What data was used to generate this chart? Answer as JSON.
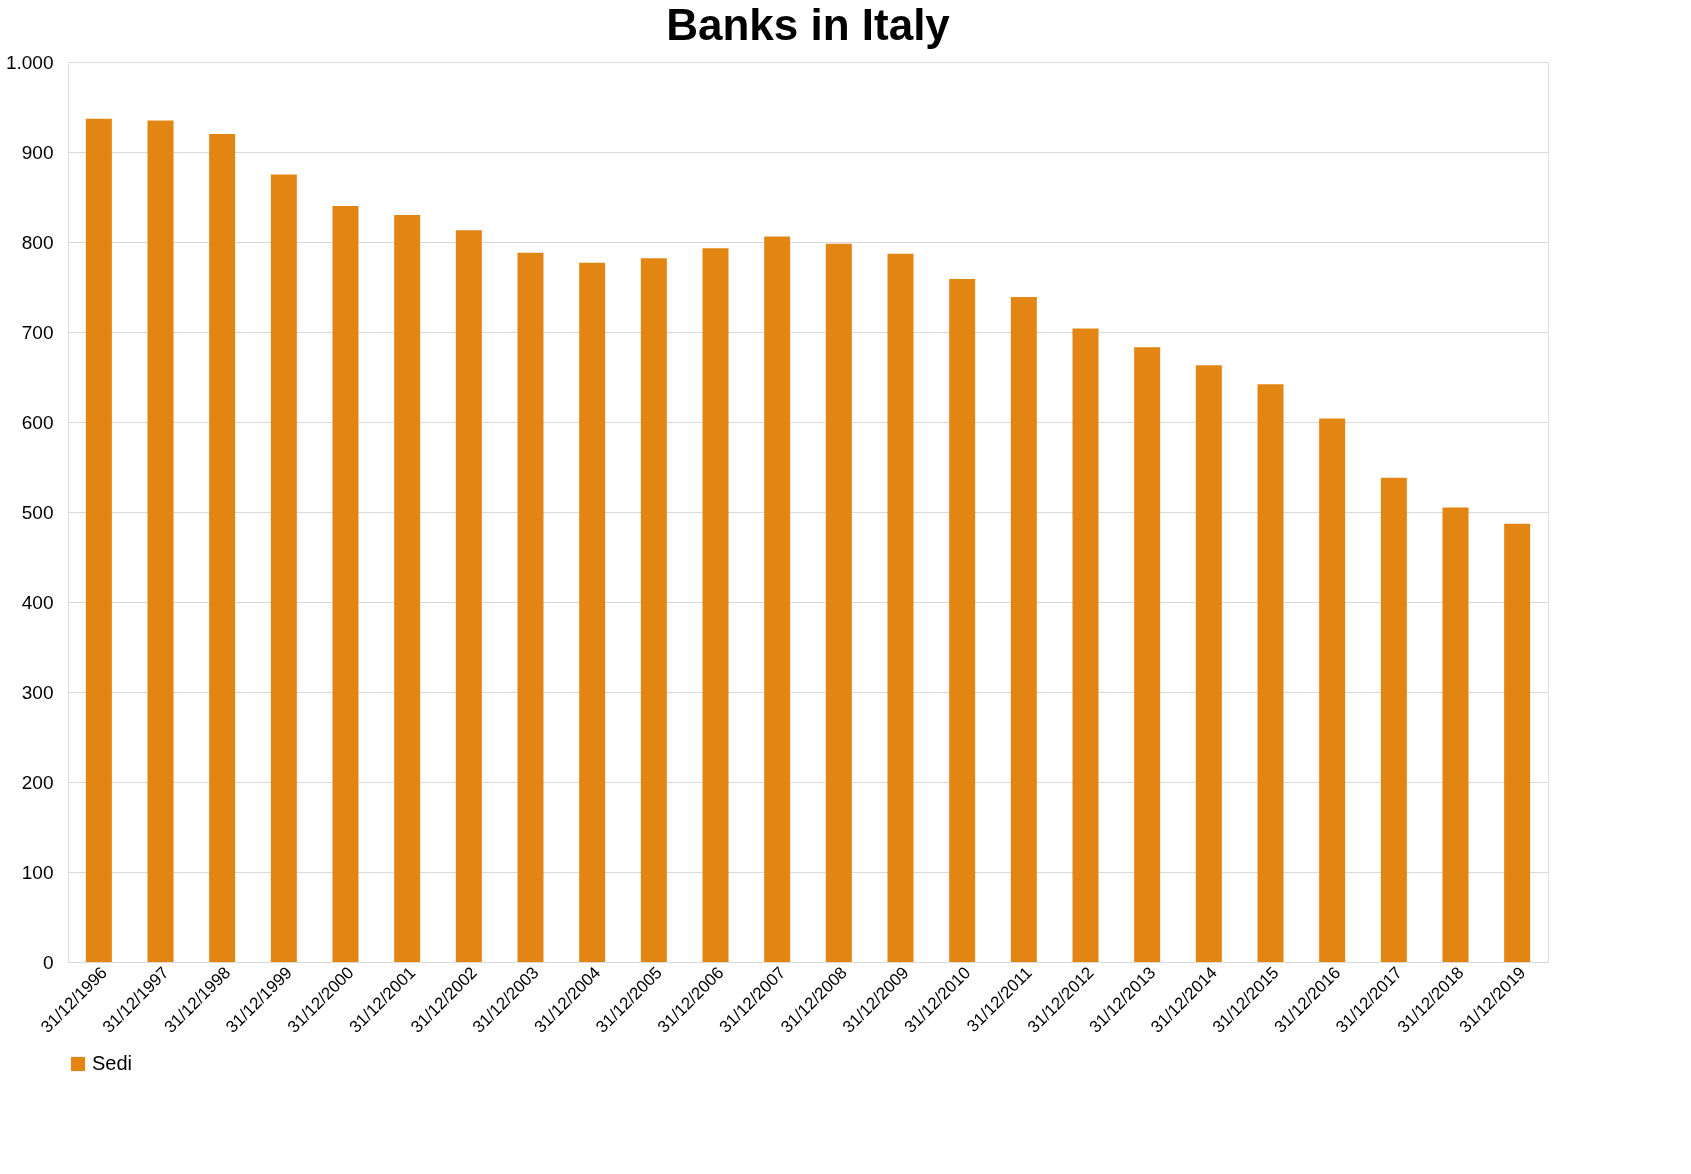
{
  "chart_data": {
    "type": "bar",
    "title": "Banks in Italy",
    "categories": [
      "31/12/1996",
      "31/12/1997",
      "31/12/1998",
      "31/12/1999",
      "31/12/2000",
      "31/12/2001",
      "31/12/2002",
      "31/12/2003",
      "31/12/2004",
      "31/12/2005",
      "31/12/2006",
      "31/12/2007",
      "31/12/2008",
      "31/12/2009",
      "31/12/2010",
      "31/12/2011",
      "31/12/2012",
      "31/12/2013",
      "31/12/2014",
      "31/12/2015",
      "31/12/2016",
      "31/12/2017",
      "31/12/2018",
      "31/12/2019"
    ],
    "series": [
      {
        "name": "Sedi",
        "color": "#e38512",
        "values": [
          937,
          935,
          920,
          875,
          840,
          830,
          813,
          788,
          777,
          782,
          793,
          806,
          798,
          787,
          759,
          739,
          704,
          683,
          663,
          642,
          604,
          538,
          505,
          487
        ]
      }
    ],
    "ylim": [
      0,
      1000
    ],
    "yticks": [
      0,
      100,
      200,
      300,
      400,
      500,
      600,
      700,
      800,
      900,
      {
        "value": 1000,
        "label": "1.000"
      }
    ],
    "grid": "y",
    "legend": "bottom"
  }
}
